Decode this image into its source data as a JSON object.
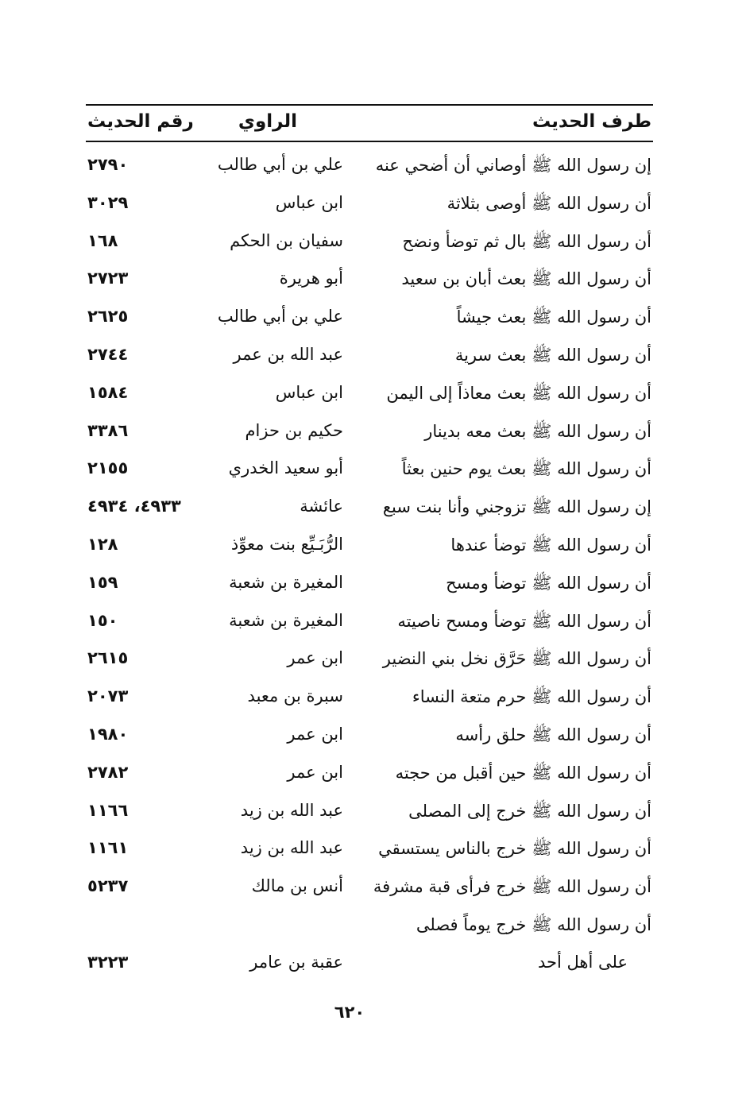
{
  "header": {
    "col_text": "طرف الحديث",
    "col_narrator": "الراوي",
    "col_number": "رقم الحديث"
  },
  "rows": [
    {
      "text": "إن رسول الله ﷺ أوصاني أن أضحي عنه",
      "narrator": "علي بن أبي طالب",
      "number": "٢٧٩٠"
    },
    {
      "text": "أن رسول الله ﷺ أوصى بثلاثة",
      "narrator": "ابن عباس",
      "number": "٣٠٢٩"
    },
    {
      "text": "أن رسول الله ﷺ بال ثم توضأ ونضح",
      "narrator": "سفيان بن الحكم",
      "number": "١٦٨"
    },
    {
      "text": "أن رسول الله ﷺ بعث أبان بن سعيد",
      "narrator": "أبو هريرة",
      "number": "٢٧٢٣"
    },
    {
      "text": "أن رسول الله ﷺ بعث جيشاً",
      "narrator": "علي بن أبي طالب",
      "number": "٢٦٢٥"
    },
    {
      "text": "أن رسول الله ﷺ بعث سرية",
      "narrator": "عبد الله بن عمر",
      "number": "٢٧٤٤"
    },
    {
      "text": "أن رسول الله ﷺ بعث معاذاً إلى اليمن",
      "narrator": "ابن عباس",
      "number": "١٥٨٤"
    },
    {
      "text": "أن رسول الله ﷺ بعث معه بدينار",
      "narrator": "حكيم بن حزام",
      "number": "٣٣٨٦"
    },
    {
      "text": "أن رسول الله ﷺ بعث يوم حنين بعثاً",
      "narrator": "أبو سعيد الخدري",
      "number": "٢١٥٥"
    },
    {
      "text": "إن رسول الله ﷺ تزوجني وأنا بنت سبع",
      "narrator": "عائشة",
      "number": "٤٩٣٣، ٤٩٣٤"
    },
    {
      "text": "أن رسول الله ﷺ توضأ عندها",
      "narrator": "الرُّبَـيِّع بنت معوِّذ",
      "number": "١٢٨"
    },
    {
      "text": "أن رسول الله ﷺ توضأ ومسح",
      "narrator": "المغيرة بن شعبة",
      "number": "١٥٩"
    },
    {
      "text": "أن رسول الله ﷺ توضأ ومسح ناصيته",
      "narrator": "المغيرة بن شعبة",
      "number": "١٥٠"
    },
    {
      "text": "أن رسول الله ﷺ حَرَّق نخل بني النضير",
      "narrator": "ابن عمر",
      "number": "٢٦١٥"
    },
    {
      "text": "أن رسول الله ﷺ حرم متعة النساء",
      "narrator": "سبرة بن معبد",
      "number": "٢٠٧٣"
    },
    {
      "text": "أن رسول الله ﷺ حلق رأسه",
      "narrator": "ابن عمر",
      "number": "١٩٨٠"
    },
    {
      "text": "أن رسول الله ﷺ حين أقبل من حجته",
      "narrator": "ابن عمر",
      "number": "٢٧٨٢"
    },
    {
      "text": "أن رسول الله ﷺ خرج إلى المصلى",
      "narrator": "عبد الله بن زيد",
      "number": "١١٦٦"
    },
    {
      "text": "أن رسول الله ﷺ خرج بالناس يستسقي",
      "narrator": "عبد الله بن زيد",
      "number": "١١٦١"
    },
    {
      "text": "أن رسول الله ﷺ خرج فرأى قبة مشرفة",
      "narrator": "أنس بن مالك",
      "number": "٥٢٣٧"
    },
    {
      "text": "أن رسول الله ﷺ خرج يوماً فصلى",
      "text_continued": "على أهل أحد",
      "narrator": "عقبة بن عامر",
      "number": "٣٢٢٣"
    }
  ],
  "page_number": "٦٢٠"
}
